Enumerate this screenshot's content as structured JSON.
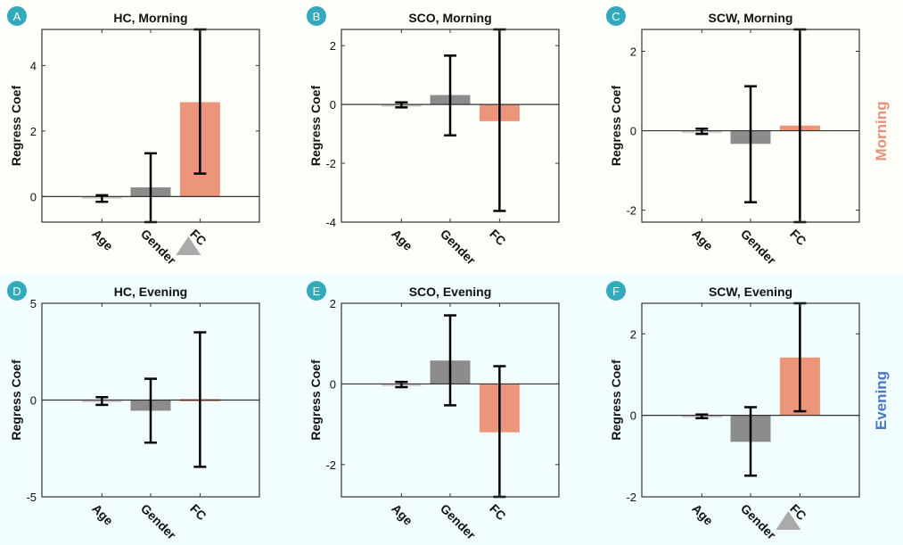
{
  "figure": {
    "side_labels": [
      {
        "text": "Morning",
        "color": "#e8907a",
        "row": 0
      },
      {
        "text": "Evening",
        "color": "#4a78c8",
        "row": 1
      }
    ],
    "colors": {
      "age_bar": "#d0d0d0",
      "gender_bar": "#8c8c8c",
      "fc_bar": "#ec957b",
      "errorbar": "#000000",
      "badge": "#33aabb",
      "marker_triangle": "#aaaaaa",
      "row_morning_bg": "#fffffa",
      "row_evening_bg": "#f2fdff"
    }
  },
  "chart_data": [
    {
      "type": "bar",
      "panel": "A",
      "title": "HC, Morning",
      "ylabel": "Regress Coef",
      "xlabel": "",
      "categories": [
        "Age",
        "Gender",
        "FC"
      ],
      "values": [
        -0.05,
        0.28,
        2.88
      ],
      "err_low": [
        -0.16,
        -0.78,
        0.7
      ],
      "err_high": [
        0.04,
        1.32,
        5.1
      ],
      "ylim": [
        -0.78,
        5.1
      ],
      "yticks": [
        0,
        2,
        4
      ],
      "significance_marker": "FC",
      "grid": false
    },
    {
      "type": "bar",
      "panel": "B",
      "title": "SCO, Morning",
      "ylabel": "Regress Coef",
      "xlabel": "",
      "categories": [
        "Age",
        "Gender",
        "FC"
      ],
      "values": [
        -0.03,
        0.32,
        -0.57
      ],
      "err_low": [
        -0.1,
        -1.05,
        -3.62
      ],
      "err_high": [
        0.07,
        1.66,
        2.55
      ],
      "ylim": [
        -4,
        2.55
      ],
      "yticks": [
        -4,
        -2,
        0,
        2
      ],
      "significance_marker": null,
      "grid": false
    },
    {
      "type": "bar",
      "panel": "C",
      "title": "SCW, Morning",
      "ylabel": "Regress Coef",
      "xlabel": "",
      "categories": [
        "Age",
        "Gender",
        "FC"
      ],
      "values": [
        -0.03,
        -0.33,
        0.13
      ],
      "err_low": [
        -0.08,
        -1.8,
        -2.3
      ],
      "err_high": [
        0.05,
        1.12,
        2.55
      ],
      "ylim": [
        -2.3,
        2.55
      ],
      "yticks": [
        -2,
        0,
        2
      ],
      "significance_marker": null,
      "grid": false
    },
    {
      "type": "bar",
      "panel": "D",
      "title": "HC, Evening",
      "ylabel": "Regress Coef",
      "xlabel": "",
      "categories": [
        "Age",
        "Gender",
        "FC"
      ],
      "values": [
        -0.1,
        -0.55,
        0.05
      ],
      "err_low": [
        -0.25,
        -2.2,
        -3.45
      ],
      "err_high": [
        0.15,
        1.1,
        3.5
      ],
      "ylim": [
        -5,
        5
      ],
      "yticks": [
        -5,
        0,
        5
      ],
      "significance_marker": null,
      "grid": false
    },
    {
      "type": "bar",
      "panel": "E",
      "title": "SCO, Evening",
      "ylabel": "Regress Coef",
      "xlabel": "",
      "categories": [
        "Age",
        "Gender",
        "FC"
      ],
      "values": [
        -0.02,
        0.58,
        -1.2
      ],
      "err_low": [
        -0.08,
        -0.53,
        -2.8
      ],
      "err_high": [
        0.05,
        1.7,
        0.44
      ],
      "ylim": [
        -2.8,
        2
      ],
      "yticks": [
        -2,
        0,
        2
      ],
      "significance_marker": null,
      "grid": false
    },
    {
      "type": "bar",
      "panel": "F",
      "title": "SCW, Evening",
      "ylabel": "Regress Coef",
      "xlabel": "",
      "categories": [
        "Age",
        "Gender",
        "FC"
      ],
      "values": [
        -0.03,
        -0.65,
        1.42
      ],
      "err_low": [
        -0.07,
        -1.48,
        0.1
      ],
      "err_high": [
        0.02,
        0.2,
        2.75
      ],
      "ylim": [
        -2,
        2.75
      ],
      "yticks": [
        -2,
        0,
        2
      ],
      "significance_marker": "FC",
      "grid": false
    }
  ]
}
